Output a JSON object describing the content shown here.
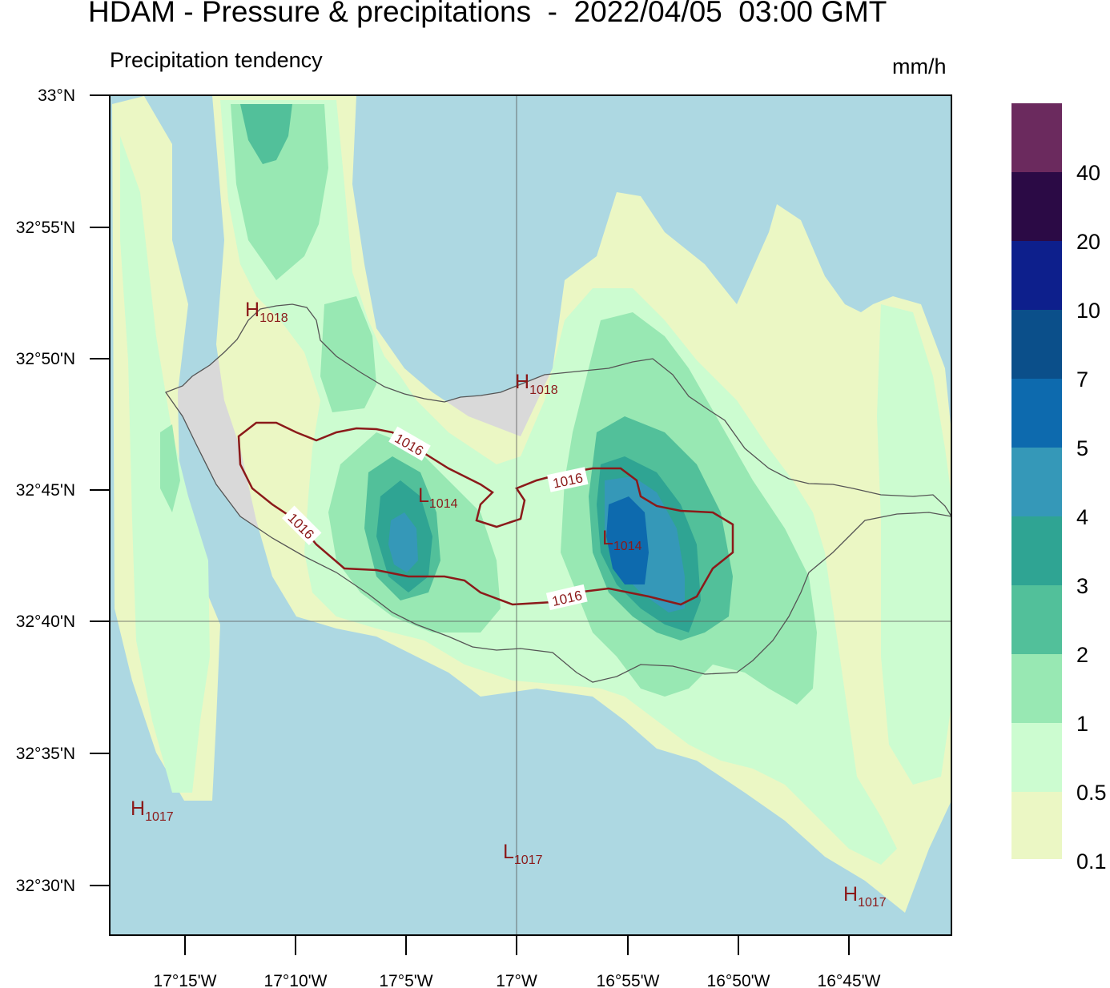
{
  "header": {
    "title": "HDAM - Pressure & precipitations  -  2022/04/05  03:00 GMT",
    "subtitle": "Precipitation tendency",
    "units": "mm/h"
  },
  "axes": {
    "lat_labels": [
      "33°N",
      "32°55'N",
      "32°50'N",
      "32°45'N",
      "32°40'N",
      "32°35'N",
      "32°30'N"
    ],
    "lon_labels": [
      "17°15'W",
      "17°10'W",
      "17°5'W",
      "17°W",
      "16°55'W",
      "16°50'W",
      "16°45'W"
    ]
  },
  "pressure_centers": [
    {
      "type": "H",
      "value": "1018"
    },
    {
      "type": "H",
      "value": "1018"
    },
    {
      "type": "L",
      "value": "1014"
    },
    {
      "type": "L",
      "value": "1014"
    },
    {
      "type": "H",
      "value": "1017"
    },
    {
      "type": "L",
      "value": "1017"
    },
    {
      "type": "H",
      "value": "1017"
    }
  ],
  "isobars": [
    {
      "value": "1016"
    },
    {
      "value": "1016"
    },
    {
      "value": "1016"
    },
    {
      "value": "1016"
    }
  ],
  "colorbar": {
    "labels": [
      "40",
      "20",
      "10",
      "7",
      "5",
      "4",
      "3",
      "2",
      "1",
      "0.5",
      "0.1"
    ],
    "colors": [
      "#6b2a5e",
      "#2b0a45",
      "#0d1f8c",
      "#0b4f8a",
      "#0d6aae",
      "#3598b8",
      "#2fa493",
      "#52c09a",
      "#98e8b3",
      "#ccfcd0",
      "#ebf7c4"
    ]
  },
  "colors": {
    "sea": "#add8e2",
    "land": "#d9d9d9",
    "isobar": "#8b1a1a",
    "coast": "#555555"
  }
}
